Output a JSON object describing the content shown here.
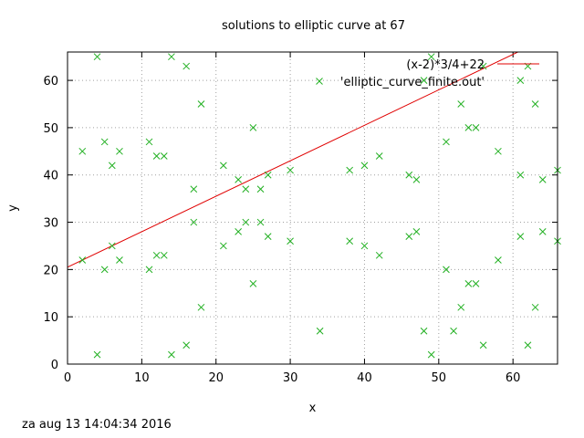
{
  "chart_data": {
    "type": "scatter",
    "title": "solutions to elliptic curve at 67",
    "xlabel": "x",
    "ylabel": "y",
    "xlim": [
      0,
      66
    ],
    "ylim": [
      0,
      66
    ],
    "xticks": [
      0,
      10,
      20,
      30,
      40,
      50,
      60
    ],
    "yticks": [
      0,
      10,
      20,
      30,
      40,
      50,
      60
    ],
    "grid": true,
    "legend_position": "top-right",
    "series": [
      {
        "name": "(x-2)*3/4+22",
        "kind": "line",
        "color": "#e00000",
        "slope": 0.75,
        "intercept": 20.5
      },
      {
        "name": "'elliptic_curve_finite.out'",
        "kind": "points",
        "color": "#22b022",
        "marker": "x",
        "points": [
          [
            2,
            22
          ],
          [
            2,
            45
          ],
          [
            4,
            2
          ],
          [
            4,
            65
          ],
          [
            5,
            20
          ],
          [
            5,
            47
          ],
          [
            6,
            25
          ],
          [
            6,
            42
          ],
          [
            7,
            22
          ],
          [
            7,
            45
          ],
          [
            11,
            20
          ],
          [
            11,
            47
          ],
          [
            12,
            23
          ],
          [
            12,
            44
          ],
          [
            13,
            23
          ],
          [
            13,
            44
          ],
          [
            14,
            2
          ],
          [
            14,
            65
          ],
          [
            16,
            4
          ],
          [
            16,
            63
          ],
          [
            17,
            30
          ],
          [
            17,
            37
          ],
          [
            18,
            12
          ],
          [
            18,
            55
          ],
          [
            21,
            25
          ],
          [
            21,
            42
          ],
          [
            23,
            28
          ],
          [
            23,
            39
          ],
          [
            24,
            30
          ],
          [
            24,
            37
          ],
          [
            25,
            17
          ],
          [
            25,
            50
          ],
          [
            26,
            30
          ],
          [
            26,
            37
          ],
          [
            27,
            27
          ],
          [
            27,
            40
          ],
          [
            30,
            26
          ],
          [
            30,
            41
          ],
          [
            34,
            7
          ],
          [
            38,
            26
          ],
          [
            38,
            41
          ],
          [
            40,
            25
          ],
          [
            40,
            42
          ],
          [
            42,
            23
          ],
          [
            42,
            44
          ],
          [
            46,
            27
          ],
          [
            46,
            40
          ],
          [
            47,
            28
          ],
          [
            47,
            39
          ],
          [
            48,
            7
          ],
          [
            48,
            60
          ],
          [
            49,
            2
          ],
          [
            49,
            65
          ],
          [
            51,
            20
          ],
          [
            51,
            47
          ],
          [
            52,
            7
          ],
          [
            53,
            12
          ],
          [
            53,
            55
          ],
          [
            54,
            17
          ],
          [
            54,
            50
          ],
          [
            55,
            17
          ],
          [
            55,
            50
          ],
          [
            56,
            4
          ],
          [
            56,
            63
          ],
          [
            58,
            22
          ],
          [
            58,
            45
          ],
          [
            61,
            27
          ],
          [
            61,
            40
          ],
          [
            61,
            60
          ],
          [
            62,
            4
          ],
          [
            62,
            63
          ],
          [
            63,
            12
          ],
          [
            63,
            55
          ],
          [
            64,
            28
          ],
          [
            64,
            39
          ],
          [
            66,
            26
          ],
          [
            66,
            41
          ]
        ]
      }
    ]
  },
  "footer": {
    "timestamp": "za aug 13 14:04:34 2016"
  }
}
